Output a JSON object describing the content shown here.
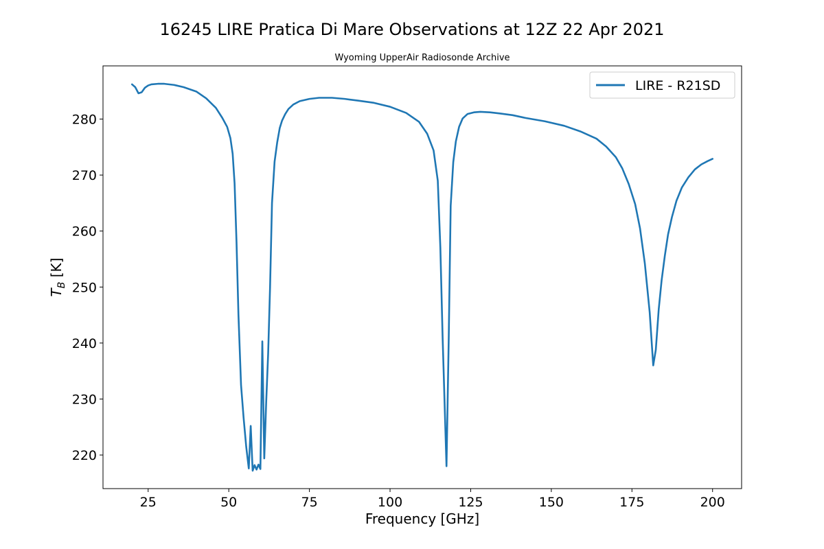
{
  "figure": {
    "suptitle": "16245 LIRE Pratica Di Mare Observations at 12Z 22 Apr 2021",
    "subtitle": "Wyoming UpperAir Radiosonde Archive"
  },
  "chart_data": {
    "type": "line",
    "title": "Wyoming UpperAir Radiosonde Archive",
    "xlabel": "Frequency [GHz]",
    "ylabel_main": "T",
    "ylabel_sub": "B",
    "ylabel_unit": " [K]",
    "xlim": [
      11.0,
      209.0
    ],
    "ylim": [
      214.0,
      289.5
    ],
    "xticks": [
      25,
      50,
      75,
      100,
      125,
      150,
      175,
      200
    ],
    "yticks": [
      220,
      230,
      240,
      250,
      260,
      270,
      280
    ],
    "grid": false,
    "legend_position": "top-right",
    "series": [
      {
        "name": "LIRE - R21SD",
        "color": "#1f77b4",
        "x": [
          20,
          21,
          22,
          23,
          24,
          25,
          26,
          28,
          30,
          33,
          36,
          40,
          43,
          46,
          48,
          49.5,
          50.5,
          51.2,
          51.8,
          52.4,
          53.0,
          53.8,
          54.6,
          55.4,
          56.2,
          56.8,
          57.4,
          58.0,
          58.6,
          59.2,
          59.8,
          60.4,
          61.0,
          61.6,
          62.2,
          62.8,
          63.4,
          64.2,
          65.0,
          65.8,
          66.5,
          67.5,
          68.5,
          70,
          72,
          75,
          78,
          82,
          86,
          90,
          95,
          100,
          105,
          109,
          111.5,
          113.5,
          114.8,
          115.6,
          116.3,
          116.9,
          117.5,
          118.2,
          118.8,
          119.6,
          120.4,
          121.4,
          122.5,
          124,
          126,
          128,
          131,
          134,
          138,
          142,
          148,
          154,
          159,
          164,
          167,
          170,
          172,
          174,
          176,
          177.5,
          179,
          180.5,
          181.6,
          182.4,
          183.3,
          184.2,
          185.2,
          186.2,
          187.4,
          188.8,
          190.5,
          192.5,
          194.5,
          196.5,
          198.5,
          200
        ],
        "y": [
          286.2,
          285.7,
          284.6,
          284.8,
          285.6,
          286.0,
          286.2,
          286.3,
          286.3,
          286.1,
          285.7,
          284.9,
          283.7,
          282.0,
          280.2,
          278.6,
          276.6,
          273.8,
          268.5,
          258.0,
          245.0,
          232.5,
          226.6,
          221.5,
          217.6,
          225.2,
          217.2,
          218.2,
          217.4,
          218.3,
          217.5,
          240.3,
          219.4,
          229.5,
          238.0,
          250.0,
          265.0,
          272.4,
          275.8,
          278.4,
          279.7,
          280.9,
          281.8,
          282.6,
          283.2,
          283.6,
          283.8,
          283.8,
          283.6,
          283.3,
          282.9,
          282.2,
          281.1,
          279.5,
          277.4,
          274.4,
          269.0,
          257.0,
          241.0,
          229.5,
          218.0,
          241.0,
          264.5,
          272.3,
          276.0,
          278.6,
          280.1,
          280.9,
          281.2,
          281.3,
          281.2,
          281.0,
          280.7,
          280.2,
          279.6,
          278.8,
          277.8,
          276.5,
          275.1,
          273.2,
          271.2,
          268.4,
          264.8,
          260.5,
          254.2,
          245.5,
          236.0,
          238.8,
          246.0,
          251.2,
          255.6,
          259.4,
          262.5,
          265.4,
          267.8,
          269.6,
          271.0,
          271.9,
          272.5,
          272.9
        ]
      }
    ]
  }
}
